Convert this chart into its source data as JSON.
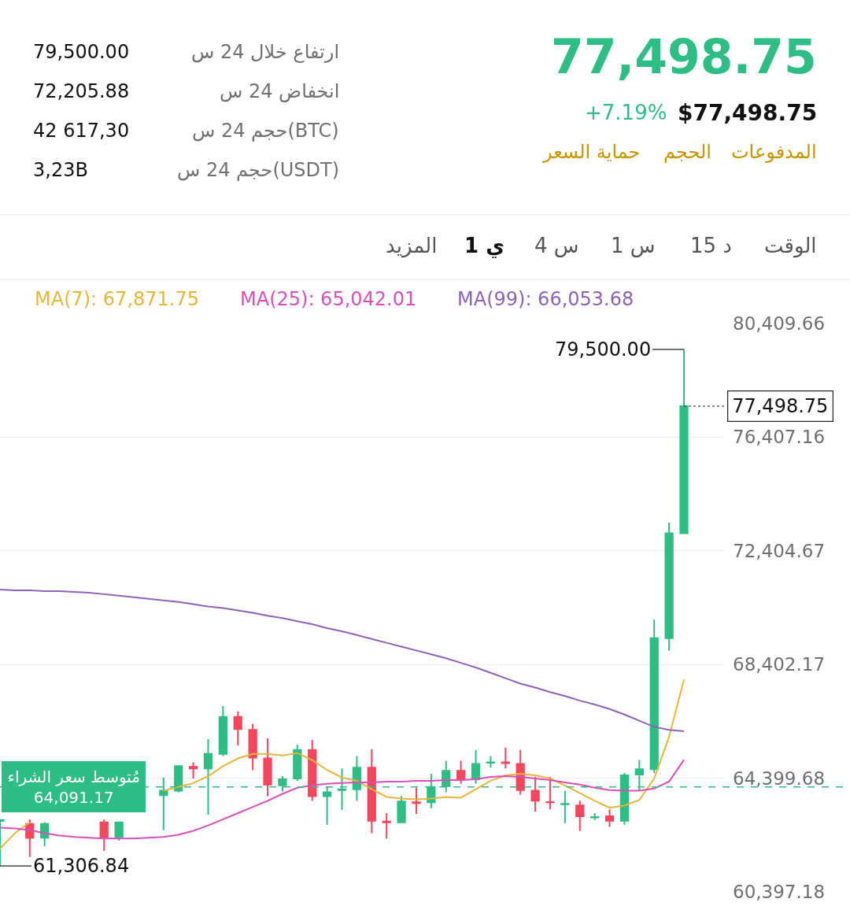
{
  "chart_data": {
    "type": "candlestick",
    "title": "77,498.75",
    "categories": [
      null,
      null,
      null,
      null,
      null,
      null,
      null,
      null,
      null,
      null,
      null,
      null,
      null,
      null,
      null,
      null,
      null,
      null,
      null,
      null,
      null,
      null,
      null,
      null,
      null,
      null,
      null,
      null,
      null,
      null,
      null,
      null,
      null,
      null,
      null,
      null,
      null,
      null,
      null,
      null,
      null,
      null,
      null,
      null,
      null,
      null,
      null
    ],
    "ohlc": [
      [
        62900,
        62950,
        61306.84,
        62925
      ],
      null,
      [
        62789,
        62950,
        61623,
        62301
      ],
      [
        62301,
        62850,
        62000,
        62789
      ],
      null,
      null,
      null,
      [
        62843,
        62950,
        61840,
        62328
      ],
      [
        62328,
        62843,
        62200,
        62843
      ],
      null,
      null,
      [
        63800,
        64416,
        62572,
        63956
      ],
      [
        63956,
        64850,
        63900,
        64823
      ],
      [
        64796,
        64958,
        64389,
        64740
      ],
      [
        64742,
        65773,
        63115,
        65257
      ],
      [
        65257,
        66940,
        65176,
        66560
      ],
      [
        66560,
        66750,
        65556,
        66126
      ],
      [
        66098,
        66316,
        64687,
        65122
      ],
      [
        65095,
        65800,
        63766,
        64172
      ],
      [
        64145,
        64470,
        63928,
        64362
      ],
      [
        64389,
        65583,
        64308,
        65393
      ],
      [
        65393,
        65746,
        63603,
        63766
      ],
      [
        63766,
        64118,
        62762,
        63901
      ],
      [
        63983,
        64742,
        63277,
        64010
      ],
      [
        64010,
        65176,
        63603,
        64769
      ],
      [
        64769,
        65420,
        62464,
        62898
      ],
      [
        62871,
        63169,
        62274,
        62843
      ],
      [
        62843,
        63766,
        62843,
        63576
      ],
      [
        63549,
        64064,
        63140,
        63520
      ],
      [
        63549,
        64552,
        63332,
        64091
      ],
      [
        64118,
        65013,
        63901,
        64660
      ],
      [
        64660,
        65013,
        64199,
        64362
      ],
      [
        64362,
        65393,
        64199,
        64904
      ],
      [
        64940,
        65176,
        64769,
        64958
      ],
      [
        64958,
        65474,
        64742,
        64930
      ],
      [
        64904,
        65393,
        63820,
        63983
      ],
      [
        63956,
        64443,
        63223,
        63603
      ],
      [
        63560,
        64443,
        63304,
        63549
      ],
      [
        63480,
        63956,
        62816,
        63494
      ],
      [
        63440,
        63603,
        62545,
        63061
      ],
      [
        63020,
        63169,
        62925,
        63033
      ],
      [
        63061,
        63304,
        62681,
        62898
      ],
      [
        62898,
        64579,
        62762,
        64497
      ],
      [
        64525,
        65040,
        63956,
        64715
      ],
      [
        64715,
        69982,
        64579,
        69330
      ],
      [
        69330,
        73403,
        68896,
        73023
      ],
      [
        73023,
        79500,
        73023,
        77498.75
      ]
    ],
    "series": [
      {
        "type": "line",
        "name": "MA(7): 67,871.75",
        "color": "#e7b63b",
        "values": [
          61917,
          62464,
          62843,
          null,
          null,
          null,
          null,
          null,
          null,
          null,
          null,
          63956,
          64091,
          64226,
          64470,
          64823,
          65095,
          65257,
          65257,
          65203,
          65284,
          65040,
          64687,
          64416,
          64308,
          64010,
          63738,
          63684,
          63657,
          63684,
          63738,
          63711,
          64010,
          64308,
          64497,
          64552,
          64497,
          64389,
          64145,
          63874,
          63603,
          63359,
          63440,
          63630,
          64389,
          65854,
          67871.75
        ]
      },
      {
        "type": "line",
        "name": "MA(25): 65,042.01",
        "color": "#d94fb8",
        "values": [
          62653,
          62626,
          62572,
          62464,
          62382,
          62328,
          62301,
          62274,
          62274,
          62274,
          62301,
          62328,
          62409,
          62545,
          62735,
          62952,
          63169,
          63386,
          63603,
          63847,
          64064,
          64145,
          64199,
          64226,
          64253,
          64253,
          64280,
          64280,
          64308,
          64308,
          64335,
          64335,
          64362,
          64443,
          64470,
          64443,
          64389,
          64335,
          64253,
          64172,
          64064,
          63983,
          63956,
          63956,
          64037,
          64280,
          65042.01
        ]
      },
      {
        "type": "line",
        "name": "MA(99): 66,053.68",
        "color": "#8c63b5",
        "values": [
          71041,
          71014,
          71014,
          70987,
          70987,
          70960,
          70932,
          70878,
          70824,
          70769,
          70715,
          70661,
          70606,
          70525,
          70443,
          70389,
          70307,
          70226,
          70117,
          70036,
          69927,
          69819,
          69683,
          69574,
          69439,
          69303,
          69167,
          69032,
          68896,
          68760,
          68624,
          68461,
          68298,
          68108,
          67918,
          67728,
          67592,
          67429,
          67293,
          67130,
          66996,
          66833,
          66641,
          66424,
          66207,
          66098,
          66053.68
        ]
      }
    ],
    "ylim": [
      60397.18,
      80409.66
    ],
    "yticks": [
      {
        "value": 60397.18,
        "label": "60,397.18"
      },
      {
        "value": 64399.68,
        "label": "64,399.68"
      },
      {
        "value": 68402.17,
        "label": "68,402.17"
      },
      {
        "value": 72404.67,
        "label": "72,404.67"
      },
      {
        "value": 76407.16,
        "label": "76,407.16"
      },
      {
        "value": 80409.66,
        "label": "80,409.66"
      }
    ],
    "grid": "y",
    "tick_labels": "y",
    "legend": "top",
    "ref_lines": [
      {
        "axis": "y",
        "value": 77498.75,
        "label": "77,498.75",
        "line_style": "dotted",
        "color": "#222222"
      },
      {
        "axis": "y",
        "value": 64091.17,
        "label": "مُتوسط سعر الشراء\n64,091.17",
        "line_style": "dashed",
        "color": "#2ebd85"
      }
    ],
    "annotations": [
      "ارتفاع خلال 24 س",
      "79,500.00",
      "انخفاض 24 س",
      "72,205.88",
      "حجم 24 س(BTC)",
      "42 617,30",
      "حجم 24 س(USDT)",
      "3,23B",
      "+7.19%",
      "$77,498.75",
      "المدفوعات",
      "الحجم",
      "حماية السعر",
      "الوقت",
      "15 د",
      "1 س",
      "4 س",
      "1 ي",
      "المزيد",
      "79,500.00",
      "61,306.84"
    ]
  }
}
